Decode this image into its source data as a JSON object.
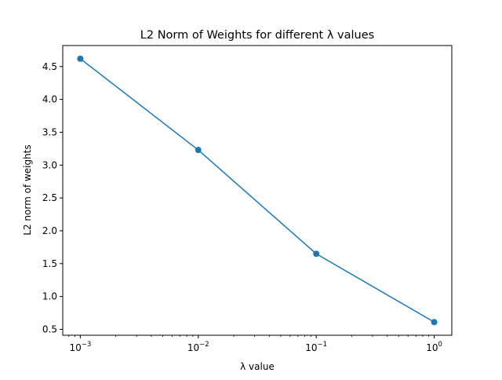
{
  "chart_data": {
    "type": "line",
    "title": "L2 Norm of Weights for different λ values",
    "xlabel": "λ value",
    "ylabel": "L2 norm of weights",
    "xscale": "log",
    "x": [
      0.001,
      0.01,
      0.1,
      1
    ],
    "series": [
      {
        "values": [
          4.62,
          3.23,
          1.65,
          0.61
        ],
        "color": "#1f77b4",
        "marker": "circle"
      }
    ],
    "xlim": [
      0.00071,
      1.41
    ],
    "ylim": [
      0.41,
      4.82
    ],
    "xticks": [
      {
        "value": 0.001,
        "base": "10",
        "exp": "−3"
      },
      {
        "value": 0.01,
        "base": "10",
        "exp": "−2"
      },
      {
        "value": 0.1,
        "base": "10",
        "exp": "−1"
      },
      {
        "value": 1,
        "base": "10",
        "exp": "0"
      }
    ],
    "yticks": [
      {
        "value": 0.5,
        "label": "0.5"
      },
      {
        "value": 1.0,
        "label": "1.0"
      },
      {
        "value": 1.5,
        "label": "1.5"
      },
      {
        "value": 2.0,
        "label": "2.0"
      },
      {
        "value": 2.5,
        "label": "2.5"
      },
      {
        "value": 3.0,
        "label": "3.0"
      },
      {
        "value": 3.5,
        "label": "3.5"
      },
      {
        "value": 4.0,
        "label": "4.0"
      },
      {
        "value": 4.5,
        "label": "4.5"
      }
    ],
    "grid": false,
    "legend": "none"
  }
}
